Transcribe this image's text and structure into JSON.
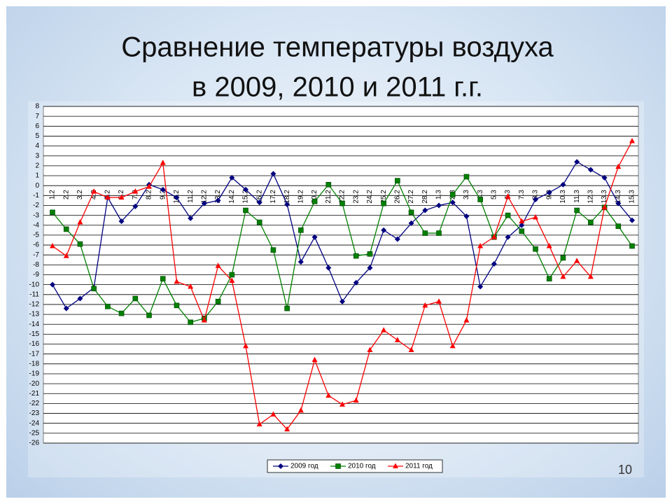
{
  "chart_data": {
    "type": "line",
    "title": "Сравнение температуры воздуха",
    "subtitle": "в 2009, 2010 и 2011 г.г.",
    "categories": [
      "1.2",
      "2.2",
      "3.2",
      "4.2",
      "5.2",
      "6.2",
      "7.2",
      "8.2",
      "9.2",
      "10.2",
      "11.2",
      "12.2",
      "13.2",
      "14.2",
      "15.2",
      "16.2",
      "17.2",
      "18.2",
      "19.2",
      "20.2",
      "21.2",
      "22.2",
      "23.2",
      "24.2",
      "25.2",
      "26.2",
      "27.2",
      "28.2",
      "1.3",
      "2.3",
      "3.3",
      "4.3",
      "5.3",
      "6.3",
      "7.3",
      "8.3",
      "9.3",
      "10.3",
      "11.3",
      "12.3",
      "13.3",
      "14.3",
      "15.3"
    ],
    "series": [
      {
        "name": "2009 год",
        "color": "#000080",
        "marker": "diamond",
        "values": [
          -10,
          -12.4,
          -11.4,
          -10.3,
          -1.2,
          -3.6,
          -2.1,
          0.1,
          -0.4,
          -1.2,
          -3.3,
          -1.8,
          -1.5,
          0.8,
          -0.4,
          -1.7,
          1.2,
          -1.9,
          -7.7,
          -5.2,
          -8.3,
          -11.7,
          -9.8,
          -8.3,
          -4.5,
          -5.4,
          -3.8,
          -2.5,
          -2,
          -1.7,
          -3.1,
          -10.2,
          -7.9,
          -5.2,
          -4,
          -1.4,
          -0.7,
          0.1,
          2.4,
          1.6,
          0.8,
          -1.8,
          -3.5
        ]
      },
      {
        "name": "2010 год",
        "color": "#008000",
        "marker": "square",
        "values": [
          -2.7,
          -4.4,
          -5.9,
          -10.4,
          -12.2,
          -12.9,
          -11.4,
          -13.1,
          -9.4,
          -12.1,
          -13.8,
          -13.4,
          -11.7,
          -9,
          -2.5,
          -3.7,
          -6.5,
          -12.4,
          -4.5,
          -1.6,
          0.1,
          -1.8,
          -7.1,
          -6.9,
          -1.8,
          0.5,
          -2.7,
          -4.8,
          -4.8,
          -0.9,
          0.9,
          -1.4,
          -5.2,
          -3,
          -4.6,
          -6.4,
          -9.4,
          -7.3,
          -2.5,
          -3.7,
          -2.2,
          -4.1,
          -6.1
        ]
      },
      {
        "name": "2011 год",
        "color": "#ff0000",
        "marker": "triangle",
        "values": [
          -6.1,
          -7.1,
          -3.7,
          -0.6,
          -1.2,
          -1.2,
          -0.6,
          -0.1,
          2.3,
          -9.7,
          -10.2,
          -13.6,
          -8.1,
          -9.6,
          -16.2,
          -24.1,
          -23.1,
          -24.6,
          -22.7,
          -17.6,
          -21.2,
          -22.1,
          -21.7,
          -16.6,
          -14.6,
          -15.6,
          -16.6,
          -12.1,
          -11.7,
          -16.2,
          -13.6,
          -6.1,
          -5.2,
          -1.1,
          -3.6,
          -3.2,
          -6.1,
          -9.2,
          -7.6,
          -9.2,
          -2.2,
          1.9,
          4.5
        ]
      }
    ],
    "ylim": [
      -26,
      8
    ],
    "yticks": [
      -26,
      -25,
      -24,
      -23,
      -22,
      -21,
      -20,
      -19,
      -18,
      -17,
      -16,
      -15,
      -14,
      -13,
      -12,
      -11,
      -10,
      -9,
      -8,
      -7,
      -6,
      -5,
      -4,
      -3,
      -2,
      -1,
      0,
      1,
      2,
      3,
      4,
      5,
      6,
      7,
      8
    ],
    "grid": true,
    "legend": "bottom"
  },
  "page_number": "10"
}
